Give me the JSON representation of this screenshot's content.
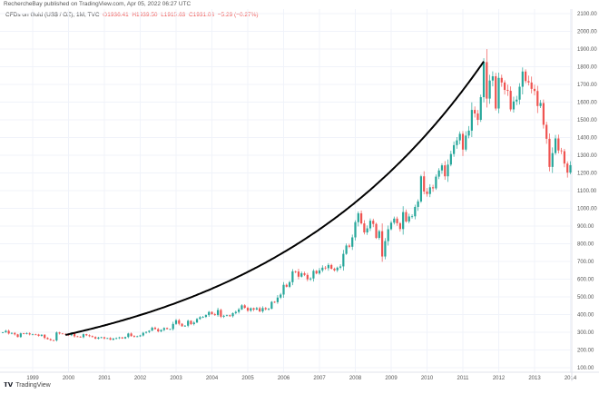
{
  "header": {
    "published": "RechercheBay published on TradingView.com, Apr 05, 2022 06:27 UTC"
  },
  "legend": {
    "symbol": "CFDs on Gold (US$ / OZ), 1M, TVC",
    "open": "O1936.41",
    "high": "H1939.50",
    "low": "L1915.63",
    "close": "C1931.03",
    "change": "−5.29 (−0.27%)"
  },
  "footer": {
    "brand": "TradingView"
  },
  "colors": {
    "up": "#26a69a",
    "down": "#ef5350",
    "curve": "#000000",
    "grid": "#f0f3fa"
  },
  "chart_data": {
    "type": "candlestick",
    "title": "CFDs on Gold (US$ / OZ), 1M",
    "start_month": "1998-03",
    "monthly_close": [
      300,
      308,
      293,
      296,
      288,
      273,
      294,
      292,
      294,
      288,
      288,
      287,
      280,
      286,
      268,
      261,
      255,
      254,
      299,
      293,
      291,
      288,
      283,
      294,
      277,
      275,
      272,
      289,
      283,
      278,
      273,
      264,
      270,
      272,
      265,
      267,
      258,
      264,
      267,
      271,
      265,
      273,
      293,
      279,
      275,
      277,
      282,
      297,
      302,
      309,
      326,
      318,
      305,
      313,
      324,
      318,
      318,
      347,
      368,
      348,
      334,
      337,
      365,
      346,
      355,
      375,
      385,
      387,
      397,
      415,
      402,
      397,
      426,
      388,
      393,
      396,
      391,
      408,
      415,
      429,
      452,
      438,
      422,
      436,
      428,
      436,
      418,
      437,
      430,
      433,
      472,
      470,
      496,
      513,
      568,
      557,
      583,
      644,
      643,
      614,
      633,
      624,
      599,
      604,
      647,
      632,
      650,
      665,
      662,
      680,
      659,
      650,
      665,
      672,
      743,
      790,
      783,
      836,
      922,
      972,
      915,
      864,
      887,
      930,
      912,
      833,
      871,
      728,
      815,
      882,
      919,
      942,
      916,
      883,
      979,
      926,
      954,
      955,
      1008,
      1039,
      1181,
      1095,
      1081,
      1119,
      1113,
      1179,
      1214,
      1243,
      1181,
      1247,
      1307,
      1357,
      1384,
      1421,
      1332,
      1411,
      1439,
      1556,
      1536,
      1500,
      1628,
      1826,
      1620,
      1722,
      1746,
      1564,
      1737,
      1711,
      1669,
      1664,
      1559,
      1604,
      1614,
      1687,
      1773,
      1719,
      1711,
      1675,
      1663,
      1578,
      1595,
      1472,
      1393,
      1234,
      1312,
      1395,
      1327,
      1323,
      1253,
      1202,
      1244,
      1326,
      1284
    ],
    "x_ticks": [
      "1999",
      "2000",
      "2001",
      "2002",
      "2003",
      "2004",
      "2005",
      "2006",
      "2007",
      "2008",
      "2009",
      "2010",
      "2011",
      "2012",
      "2013",
      "2014"
    ],
    "y_ticks": [
      "2100.00",
      "2000.00",
      "1900.00",
      "1800.00",
      "1700.00",
      "1600.00",
      "1500.00",
      "1400.00",
      "1300.00",
      "1200.00",
      "1100.00",
      "1000.00",
      "900.00",
      "800.00",
      "700.00",
      "600.00",
      "500.00",
      "400.00",
      "300.00",
      "200.00",
      "100.00"
    ],
    "ylim": [
      100,
      2100
    ],
    "curve": {
      "start": {
        "month": "1999-12",
        "price": 285
      },
      "end": {
        "month": "2011-08",
        "price": 1830
      }
    }
  }
}
